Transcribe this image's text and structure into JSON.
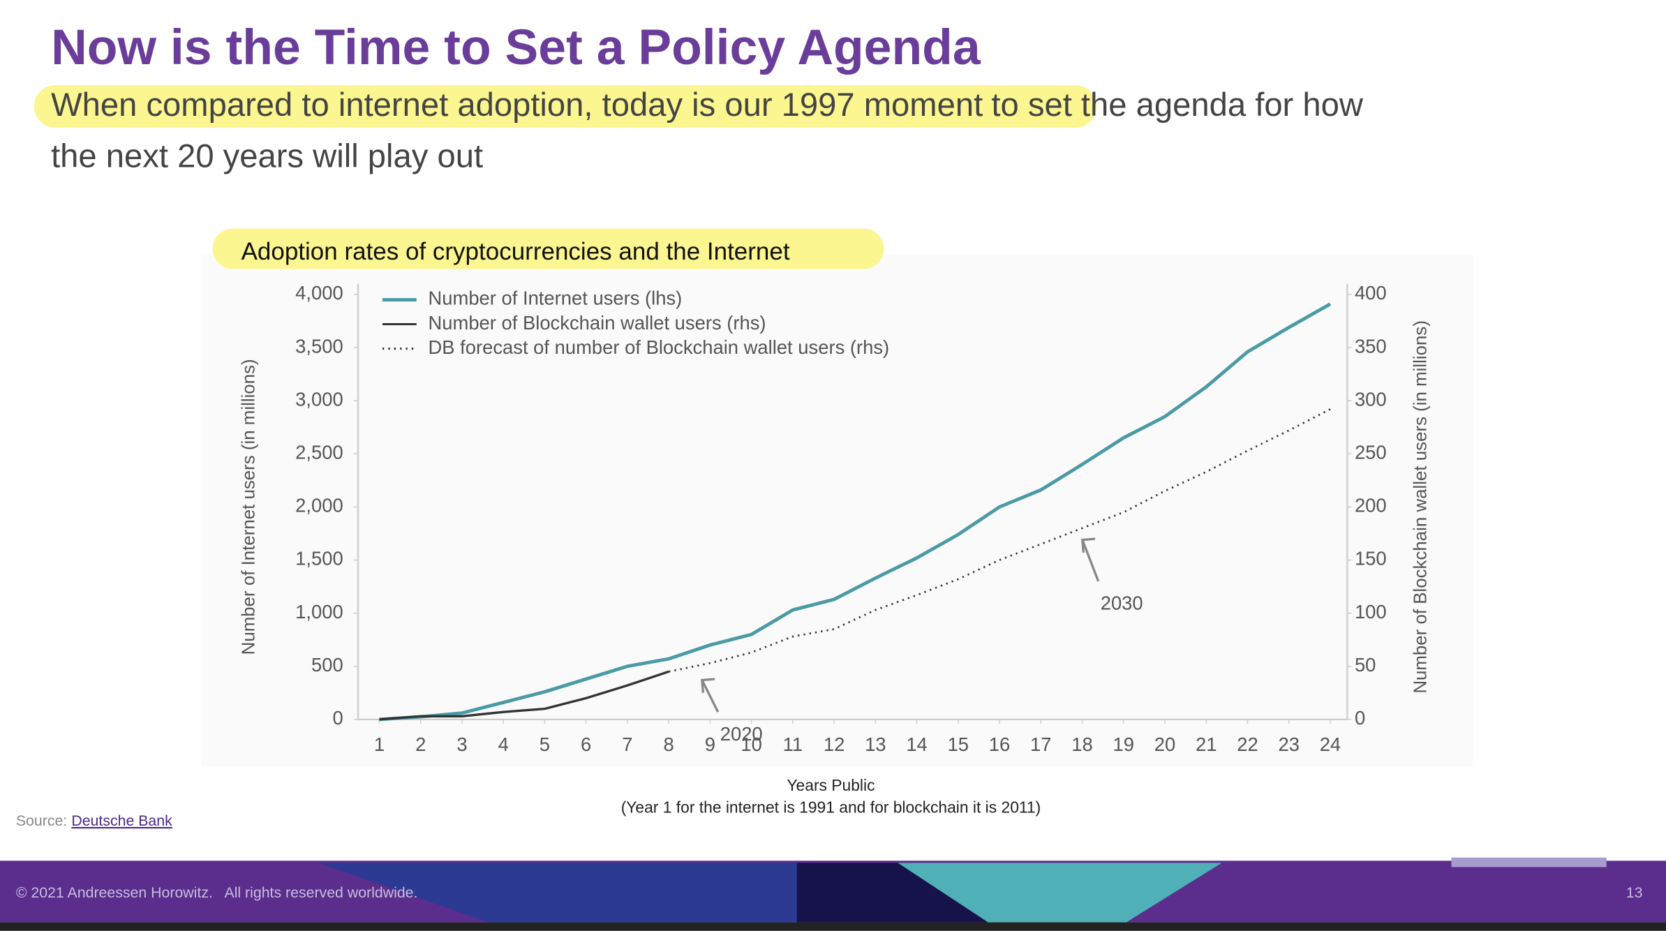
{
  "slide": {
    "title": "Now is the Time to Set a Policy Agenda",
    "subtitle_highlight": "When compared to internet adoption, today is our 1997 moment",
    "subtitle_line1_rest": "to set the agenda for how",
    "subtitle_line2": "the next 20 years will play out",
    "source_label": "Source:",
    "source_link": "Deutsche Bank",
    "footer": "© 2021 Andreessen Horowitz.   All rights reserved worldwide.",
    "page_number": "13"
  },
  "chart_data": {
    "type": "line",
    "title": "Adoption rates of cryptocurrencies and the Internet",
    "xlabel": "Years Public",
    "xlabel_note": "(Year 1 for the internet is 1991 and for blockchain it is 2011)",
    "ylabel": "Number of Internet users (in millions)",
    "y2label": "Number of Blockchain wallet users (in millions)",
    "x": [
      1,
      2,
      3,
      4,
      5,
      6,
      7,
      8,
      9,
      10,
      11,
      12,
      13,
      14,
      15,
      16,
      17,
      18,
      19,
      20,
      21,
      22,
      23,
      24
    ],
    "xlim": [
      1,
      24
    ],
    "xticks": [
      1,
      2,
      3,
      4,
      5,
      6,
      7,
      8,
      9,
      10,
      11,
      12,
      13,
      14,
      15,
      16,
      17,
      18,
      19,
      20,
      21,
      22,
      23,
      24
    ],
    "ylim": [
      0,
      4000
    ],
    "yticks": [
      0,
      500,
      {
        "value": 1000,
        "label": "1,000"
      },
      {
        "value": 1500,
        "label": "1,500"
      },
      {
        "value": 2000,
        "label": "2,000"
      },
      {
        "value": 2500,
        "label": "2,500"
      },
      {
        "value": 3000,
        "label": "3,000"
      },
      {
        "value": 3500,
        "label": "3,500"
      },
      {
        "value": 4000,
        "label": "4,000"
      }
    ],
    "y2lim": [
      0,
      400
    ],
    "y2ticks": [
      0,
      50,
      100,
      150,
      200,
      250,
      300,
      350,
      400
    ],
    "legend": "upper left",
    "grid": false,
    "series": [
      {
        "name": "Number of Internet users (lhs)",
        "color": "#4a9ba5",
        "style": "solid",
        "values": [
          0,
          25,
          60,
          160,
          260,
          380,
          500,
          570,
          700,
          800,
          1030,
          1130,
          1330,
          1520,
          1740,
          2000,
          2160,
          2400,
          2650,
          2850,
          3130,
          3460,
          3690,
          3910
        ]
      },
      {
        "name": "Number of Blockchain wallet users (rhs)",
        "color": "#333333",
        "style": "solid",
        "axis": "y2",
        "values": [
          0,
          3,
          3,
          7,
          10,
          20,
          32,
          45,
          null,
          null,
          null,
          null,
          null,
          null,
          null,
          null,
          null,
          null,
          null,
          null,
          null,
          null,
          null,
          null
        ]
      },
      {
        "name": "DB forecast of number of Blockchain wallet users (rhs)",
        "color": "#333333",
        "style": "dotted",
        "axis": "y2",
        "values": [
          null,
          null,
          null,
          null,
          null,
          null,
          null,
          45,
          53,
          63,
          78,
          85,
          103,
          117,
          132,
          150,
          165,
          180,
          195,
          215,
          233,
          253,
          272,
          292
        ]
      }
    ],
    "annotations": [
      {
        "text": "2020",
        "x": 8.6,
        "y": 45
      },
      {
        "text": "2030",
        "x": 17.8,
        "y": 177
      }
    ]
  }
}
